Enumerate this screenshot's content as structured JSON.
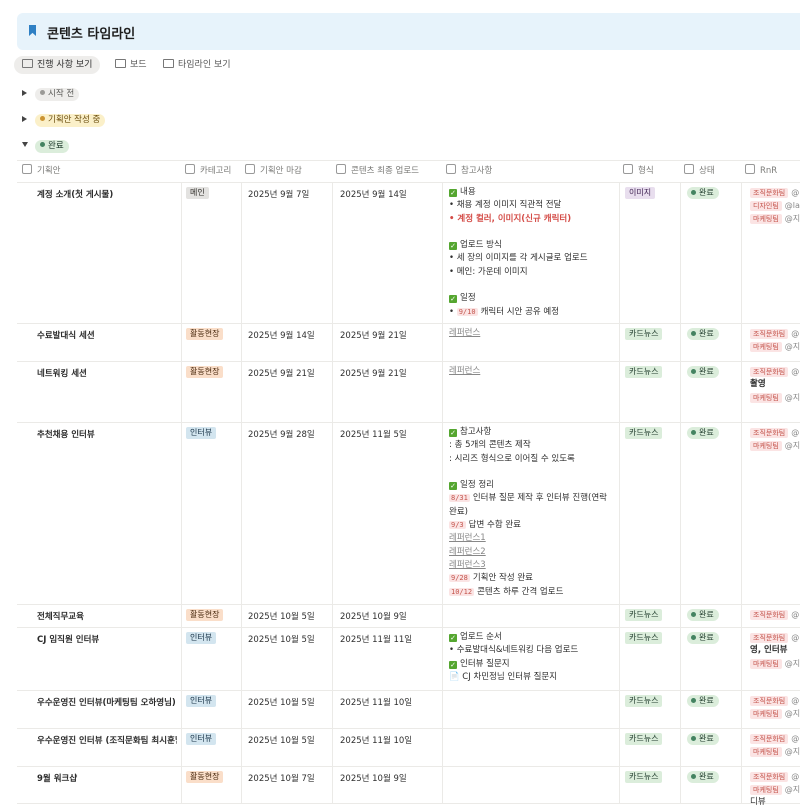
{
  "page": {
    "title": "콘텐츠 타임라인"
  },
  "views": [
    {
      "label": "진행 사항 보기",
      "icon": "table-icon",
      "active": true
    },
    {
      "label": "보드",
      "icon": "board-icon",
      "active": false
    },
    {
      "label": "타임라인 보기",
      "icon": "timeline-icon",
      "active": false
    }
  ],
  "groups": [
    {
      "label": "시작 전",
      "bg": "#eeedeb",
      "fg": "#5a5a57",
      "dot": "#9b9a97",
      "expanded": false
    },
    {
      "label": "기획안 작성 중",
      "bg": "#fbf0c9",
      "fg": "#6b4e0e",
      "dot": "#cb9433",
      "expanded": false
    },
    {
      "label": "완료",
      "bg": "#dbeddb",
      "fg": "#1c3829",
      "dot": "#448361",
      "expanded": true
    }
  ],
  "columns": [
    "기획안",
    "카테고리",
    "기획안 마감",
    "콘텐츠 최종 업로드",
    "참고사항",
    "형식",
    "상태",
    "RnR"
  ],
  "category_colors": {
    "메인": {
      "bg": "#e3e2e0",
      "fg": "#32302c"
    },
    "활동현장": {
      "bg": "#fadec9",
      "fg": "#49290e"
    },
    "인터뷰": {
      "bg": "#d3e5ef",
      "fg": "#183347"
    }
  },
  "format_colors": {
    "이미지": {
      "bg": "#e8deee",
      "fg": "#412454"
    },
    "카드뉴스": {
      "bg": "#dbeddb",
      "fg": "#1c3829"
    }
  },
  "rows": [
    {
      "name": "계정 소개(첫 게시물)",
      "category": "메인",
      "deadline": "2025년 9월 7일",
      "upload": "2025년 9월 14일",
      "format": "이미지",
      "status": "완료",
      "notes": [
        {
          "type": "check",
          "text": "내용"
        },
        {
          "type": "text",
          "text": "• 채용 계정 이미지 직관적 전달"
        },
        {
          "type": "red",
          "text": "• 계정 컬러, 이미지(신규 캐릭터)"
        },
        {
          "type": "blank",
          "text": ""
        },
        {
          "type": "check",
          "text": "업로드 방식"
        },
        {
          "type": "text",
          "text": "• 세 장의 이미지를 각 게시글로 업로드"
        },
        {
          "type": "text",
          "text": "• 메인: 가운데 이미지"
        },
        {
          "type": "blank",
          "text": ""
        },
        {
          "type": "check",
          "text": "일정"
        },
        {
          "type": "date",
          "pre": "• ",
          "date": "9/10",
          "text": "캐릭터 시안 공유 예정"
        }
      ],
      "rnr": [
        {
          "type": "tag",
          "tag": "조직문화팀",
          "at": "@"
        },
        {
          "type": "tag",
          "tag": "디자인팀",
          "at": "@la"
        },
        {
          "type": "tag",
          "tag": "마케팅팀",
          "at": "@지"
        }
      ]
    },
    {
      "name": "수료발대식 세션",
      "category": "활동현장",
      "deadline": "2025년 9월 14일",
      "upload": "2025년 9월 21일",
      "format": "카드뉴스",
      "status": "완료",
      "notes": [
        {
          "type": "link",
          "text": "레퍼런스"
        }
      ],
      "rnr": [
        {
          "type": "tag",
          "tag": "조직문화팀",
          "at": "@"
        },
        {
          "type": "tag",
          "tag": "마케팅팀",
          "at": "@지"
        }
      ]
    },
    {
      "name": "네트워킹 세션",
      "category": "활동현장",
      "deadline": "2025년 9월 21일",
      "upload": "2025년 9월 21일",
      "format": "카드뉴스",
      "status": "완료",
      "notes": [
        {
          "type": "link",
          "text": "레퍼런스"
        }
      ],
      "rnr": [
        {
          "type": "tag",
          "tag": "조직문화팀",
          "at": "@"
        },
        {
          "type": "bold",
          "text": "촬영"
        },
        {
          "type": "tag",
          "tag": "마케팅팀",
          "at": "@지"
        }
      ]
    },
    {
      "name": "추천채용 인터뷰",
      "category": "인터뷰",
      "deadline": "2025년 9월 28일",
      "upload": "2025년 11월 5일",
      "format": "카드뉴스",
      "status": "완료",
      "notes": [
        {
          "type": "check",
          "text": "참고사항"
        },
        {
          "type": "text",
          "text": ": 총 5개의 콘텐츠 제작"
        },
        {
          "type": "text",
          "text": ": 시리즈 형식으로 이어질 수 있도록"
        },
        {
          "type": "blank",
          "text": ""
        },
        {
          "type": "check",
          "text": "일정 정리"
        },
        {
          "type": "date",
          "pre": "",
          "date": "8/31",
          "text": "인터뷰 질문 제작 후 인터뷰 진행(연락"
        },
        {
          "type": "text",
          "text": "완료)"
        },
        {
          "type": "date",
          "pre": "",
          "date": "9/3",
          "text": "답변 수합 완료"
        },
        {
          "type": "link",
          "text": "레퍼런스1"
        },
        {
          "type": "link",
          "text": "레퍼런스2"
        },
        {
          "type": "link",
          "text": "레퍼런스3"
        },
        {
          "type": "date",
          "pre": "",
          "date": "9/28",
          "text": "기획안 작성 완료"
        },
        {
          "type": "date",
          "pre": "",
          "date": "10/12",
          "text": "콘텐츠 하루 간격 업로드"
        }
      ],
      "rnr": [
        {
          "type": "tag",
          "tag": "조직문화팀",
          "at": "@"
        },
        {
          "type": "tag",
          "tag": "마케팅팀",
          "at": "@지"
        }
      ]
    },
    {
      "name": "전체직무교육",
      "category": "활동현장",
      "deadline": "2025년 10월 5일",
      "upload": "2025년 10월 9일",
      "format": "카드뉴스",
      "status": "완료",
      "notes": [],
      "rnr": [
        {
          "type": "tag",
          "tag": "조직문화팀",
          "at": "@"
        }
      ]
    },
    {
      "name": "CJ 임직원 인터뷰",
      "category": "인터뷰",
      "deadline": "2025년 10월 5일",
      "upload": "2025년 11월 11일",
      "format": "카드뉴스",
      "status": "완료",
      "notes": [
        {
          "type": "check",
          "text": "업로드 순서"
        },
        {
          "type": "text",
          "text": "• 수료발대식&네트워킹 다음 업로드"
        },
        {
          "type": "check",
          "text": "인터뷰 질문지"
        },
        {
          "type": "doc",
          "text": "CJ 차민정님 인터뷰 질문지"
        }
      ],
      "rnr": [
        {
          "type": "tag",
          "tag": "조직문화팀",
          "at": "@"
        },
        {
          "type": "bold",
          "text": "영, 인터뷰"
        },
        {
          "type": "tag",
          "tag": "마케팅팀",
          "at": "@지"
        }
      ]
    },
    {
      "name": "우수운영진 인터뷰(마케팅팀 오하영님)",
      "category": "인터뷰",
      "deadline": "2025년 10월 5일",
      "upload": "2025년 11월 10일",
      "format": "카드뉴스",
      "status": "완료",
      "notes": [],
      "rnr": [
        {
          "type": "tag",
          "tag": "조직문화팀",
          "at": "@"
        },
        {
          "type": "tag",
          "tag": "마케팅팀",
          "at": "@지"
        }
      ]
    },
    {
      "name": "우수운영진 인터뷰 (조직문화팀 최시훈님",
      "category": "인터뷰",
      "deadline": "2025년 10월 5일",
      "upload": "2025년 11월 10일",
      "format": "카드뉴스",
      "status": "완료",
      "notes": [],
      "rnr": [
        {
          "type": "tag",
          "tag": "조직문화팀",
          "at": "@"
        },
        {
          "type": "tag",
          "tag": "마케팅팀",
          "at": "@지"
        }
      ]
    },
    {
      "name": "9월 워크샵",
      "category": "활동현장",
      "deadline": "2025년 10월 7일",
      "upload": "2025년 10월 9일",
      "format": "카드뉴스",
      "status": "완료",
      "notes": [],
      "rnr": [
        {
          "type": "tag",
          "tag": "조직문화팀",
          "at": "@"
        },
        {
          "type": "tag",
          "tag": "마케팅팀",
          "at": "@지"
        },
        {
          "type": "plain",
          "text": "디뷰"
        }
      ]
    }
  ]
}
